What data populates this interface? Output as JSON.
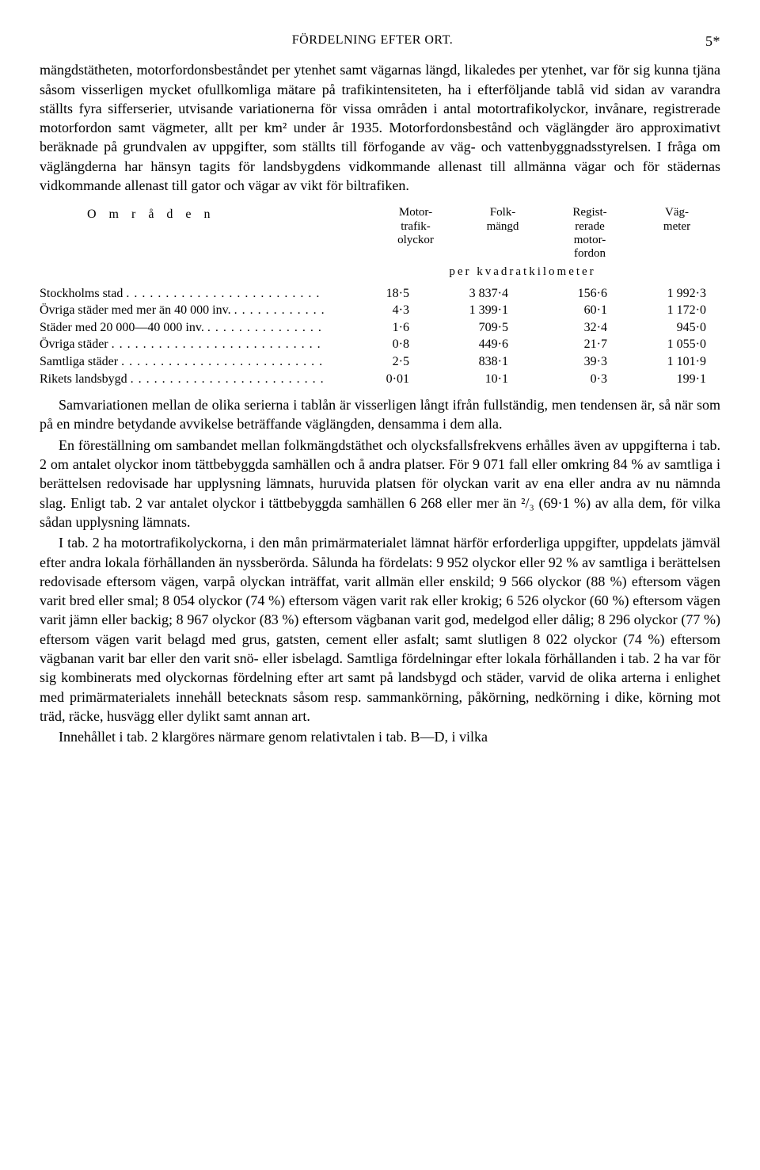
{
  "header": {
    "title": "FÖRDELNING EFTER ORT.",
    "page_number": "5*"
  },
  "para1": "mängdstätheten, motorfordonsbeståndet per ytenhet samt vägarnas längd, likaledes per ytenhet, var för sig kunna tjäna såsom visserligen mycket ofullkomliga mätare på trafikintensiteten, ha i efterföljande tablå vid sidan av varandra ställts fyra sifferserier, utvisande variationerna för vissa områden i antal motortrafikolyckor, invånare, registrerade motorfordon samt vägmeter, allt per km² under år 1935. Motorfordonsbestånd och väglängder äro approximativt beräknade på grundvalen av uppgifter, som ställts till förfogande av väg- och vattenbyggnadsstyrelsen. I fråga om väglängderna har hänsyn tagits för landsbygdens vidkommande allenast till allmänna vägar och för städernas vidkommande allenast till gator och vägar av vikt för biltrafiken.",
  "table": {
    "lead_label": "O m r å d e n",
    "columns": [
      "Motor-\ntrafik-\nolyckor",
      "Folk-\nmängd",
      "Regist-\nrerade\nmotor-\nfordon",
      "Väg-\nmeter"
    ],
    "subheader": "per   kvadratkilometer",
    "rows": [
      {
        "label": "Stockholms stad",
        "v": [
          "18·5",
          "3 837·4",
          "156·6",
          "1 992·3"
        ]
      },
      {
        "label": "Övriga städer med mer än 40 000 inv.",
        "v": [
          "4·3",
          "1 399·1",
          "60·1",
          "1 172·0"
        ]
      },
      {
        "label": "Städer med 20 000—40 000 inv.",
        "v": [
          "1·6",
          "709·5",
          "32·4",
          "945·0"
        ]
      },
      {
        "label": "Övriga städer",
        "v": [
          "0·8",
          "449·6",
          "21·7",
          "1 055·0"
        ]
      },
      {
        "label": "Samtliga städer",
        "v": [
          "2·5",
          "838·1",
          "39·3",
          "1 101·9"
        ]
      },
      {
        "label": "Rikets landsbygd",
        "v": [
          "0·01",
          "10·1",
          "0·3",
          "199·1"
        ]
      }
    ]
  },
  "para2": "Samvariationen mellan de olika serierna i tablån är visserligen långt ifrån fullständig, men tendensen är, så när som på en mindre betydande avvikelse beträffande väglängden, densamma i dem alla.",
  "para3": "En föreställning om sambandet mellan folkmängdstäthet och olycksfallsfrekvens erhålles även av uppgifterna i tab. 2 om antalet olyckor inom tättbebyggda samhällen och å andra platser. För 9 071 fall eller omkring 84 % av samtliga i berättelsen redovisade har upplysning lämnats, huruvida platsen för olyckan varit av ena eller andra av nu nämnda slag. Enligt tab. 2 var antalet olyckor i tättbebyggda samhällen 6 268 eller mer än ²/₃ (69·1 %) av alla dem, för vilka sådan upplysning lämnats.",
  "para4": "I tab. 2 ha motortrafikolyckorna, i den mån primärmaterialet lämnat härför erforderliga uppgifter, uppdelats jämväl efter andra lokala förhållanden än nyssberörda. Sålunda ha fördelats: 9 952 olyckor eller 92 % av samtliga i berättelsen redovisade eftersom vägen, varpå olyckan inträffat, varit allmän eller enskild; 9 566 olyckor (88 %) eftersom vägen varit bred eller smal; 8 054 olyckor (74 %) eftersom vägen varit rak eller krokig; 6 526 olyckor (60 %) eftersom vägen varit jämn eller backig; 8 967 olyckor (83 %) eftersom vägbanan varit god, medelgod eller dålig; 8 296 olyckor (77 %) eftersom vägen varit belagd med grus, gatsten, cement eller asfalt; samt slutligen 8 022 olyckor (74 %) eftersom vägbanan varit bar eller den varit snö- eller isbelagd. Samtliga fördelningar efter lokala förhållanden i tab. 2 ha var för sig kombinerats med olyckornas fördelning efter art samt på landsbygd och städer, varvid de olika arterna i enlighet med primärmaterialets innehåll betecknats såsom resp. sammankörning, påkörning, nedkörning i dike, körning mot träd, räcke, husvägg eller dylikt samt annan art.",
  "para5": "Innehållet i tab. 2 klargöres närmare genom relativtalen i tab. B—D, i vilka"
}
